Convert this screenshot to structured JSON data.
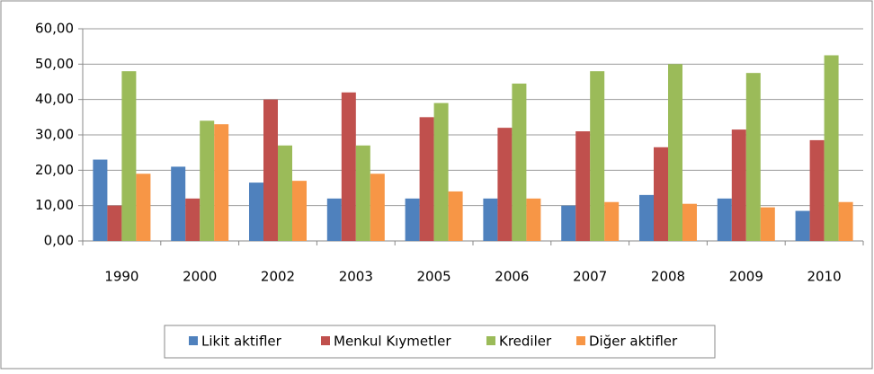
{
  "chart_data": {
    "type": "bar",
    "categories": [
      "1990",
      "2000",
      "2002",
      "2003",
      "2005",
      "2006",
      "2007",
      "2008",
      "2009",
      "2010"
    ],
    "series": [
      {
        "name": "Likit aktifler",
        "color": "#4f81bd",
        "values": [
          23,
          21,
          16.5,
          12,
          12,
          12,
          10,
          13,
          12,
          8.5
        ]
      },
      {
        "name": "Menkul Kıymetler",
        "color": "#c0504d",
        "values": [
          10,
          12,
          40,
          42,
          35,
          32,
          31,
          26.5,
          31.5,
          28.5
        ]
      },
      {
        "name": "Krediler",
        "color": "#9bbb59",
        "values": [
          48,
          34,
          27,
          27,
          39,
          44.5,
          48,
          50,
          47.5,
          52.5
        ]
      },
      {
        "name": "Diğer aktifler",
        "color": "#f79646",
        "values": [
          19,
          33,
          17,
          19,
          14,
          12,
          11,
          10.5,
          9.5,
          11
        ]
      }
    ],
    "ylim": [
      0,
      60
    ],
    "yticks": [
      {
        "value": 0,
        "label": "0,00"
      },
      {
        "value": 10,
        "label": "10,00"
      },
      {
        "value": 20,
        "label": "20,00"
      },
      {
        "value": 30,
        "label": "30,00"
      },
      {
        "value": 40,
        "label": "40,00"
      },
      {
        "value": 50,
        "label": "50,00"
      },
      {
        "value": 60,
        "label": "60,00"
      }
    ],
    "grid": true,
    "legend": "bottom"
  }
}
